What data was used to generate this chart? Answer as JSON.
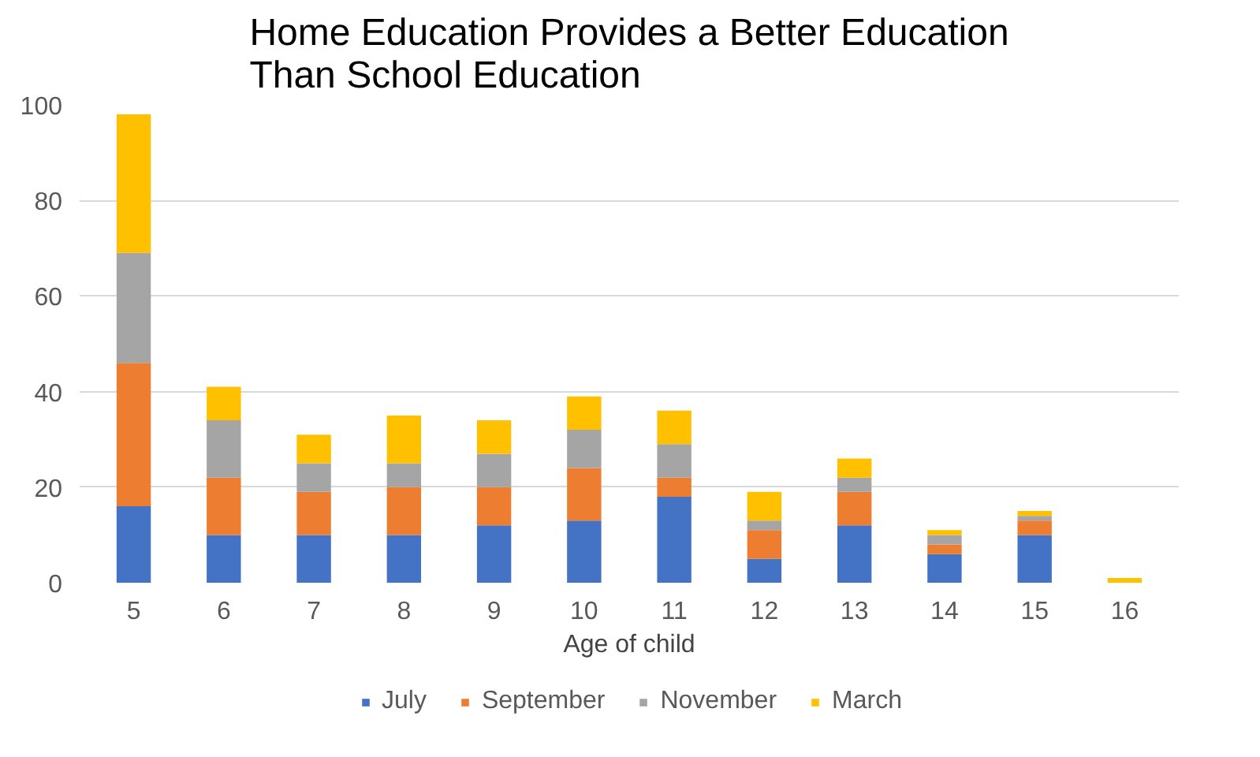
{
  "chart_data": {
    "type": "bar",
    "title": "Home Education Provides a Better Education\nThan School Education",
    "xlabel": "Age of child",
    "categories": [
      "5",
      "6",
      "7",
      "8",
      "9",
      "10",
      "11",
      "12",
      "13",
      "14",
      "15",
      "16"
    ],
    "stacked": true,
    "series": [
      {
        "name": "July",
        "color": "#4472c4",
        "values": [
          16,
          10,
          10,
          10,
          12,
          13,
          18,
          5,
          12,
          6,
          10,
          0
        ]
      },
      {
        "name": "September",
        "color": "#ed7d31",
        "values": [
          30,
          12,
          9,
          10,
          8,
          11,
          4,
          6,
          7,
          2,
          3,
          0
        ]
      },
      {
        "name": "November",
        "color": "#a5a5a5",
        "values": [
          23,
          12,
          6,
          5,
          7,
          8,
          7,
          2,
          3,
          2,
          1,
          0
        ]
      },
      {
        "name": "March",
        "color": "#ffc000",
        "values": [
          29,
          7,
          6,
          10,
          7,
          7,
          7,
          6,
          4,
          1,
          1,
          1
        ]
      }
    ],
    "ylim": [
      0,
      100
    ],
    "yticks": [
      0,
      20,
      40,
      60,
      80,
      100
    ],
    "grid": "y",
    "legend": "bottom"
  }
}
